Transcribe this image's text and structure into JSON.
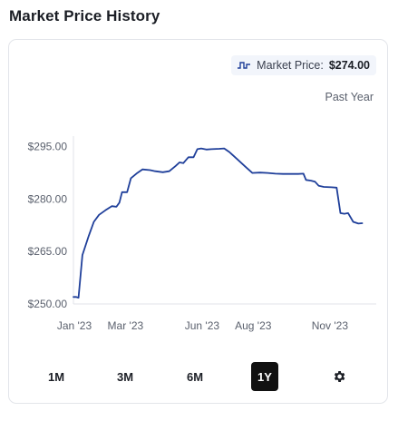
{
  "page": {
    "title": "Market Price History"
  },
  "badge": {
    "label": "Market Price:",
    "value": "$274.00"
  },
  "period": "Past Year",
  "ranges": [
    {
      "label": "1M",
      "active": false
    },
    {
      "label": "3M",
      "active": false
    },
    {
      "label": "6M",
      "active": false
    },
    {
      "label": "1Y",
      "active": true
    }
  ],
  "settings_icon": "gear-icon",
  "colors": {
    "line": "#1f3f9a",
    "active_range": "#111111"
  },
  "chart_data": {
    "type": "line",
    "x_unit": "month",
    "xticks": [
      {
        "label": "Jan '23",
        "x": 0
      },
      {
        "label": "Mar '23",
        "x": 2
      },
      {
        "label": "Jun '23",
        "x": 5
      },
      {
        "label": "Aug '23",
        "x": 7
      },
      {
        "label": "Nov '23",
        "x": 10
      }
    ],
    "yticks": [
      {
        "label": "$295.00",
        "y": 295
      },
      {
        "label": "$280.00",
        "y": 280
      },
      {
        "label": "$265.00",
        "y": 265
      },
      {
        "label": "$250.00",
        "y": 250
      }
    ],
    "xlim": [
      0,
      11.85
    ],
    "ylim": [
      250,
      297
    ],
    "grid": false,
    "series": [
      {
        "values": [
          [
            0,
            252.0
          ],
          [
            0.1,
            252.0
          ],
          [
            0.2,
            251.8
          ],
          [
            0.35,
            264.0
          ],
          [
            0.6,
            269.5
          ],
          [
            0.8,
            273.5
          ],
          [
            1.0,
            275.5
          ],
          [
            1.25,
            276.8
          ],
          [
            1.5,
            278.0
          ],
          [
            1.68,
            277.8
          ],
          [
            1.8,
            279.0
          ],
          [
            1.9,
            282.0
          ],
          [
            2.1,
            282.0
          ],
          [
            2.25,
            286.0
          ],
          [
            2.5,
            287.5
          ],
          [
            2.7,
            288.5
          ],
          [
            3.0,
            288.3
          ],
          [
            3.2,
            288.0
          ],
          [
            3.5,
            287.7
          ],
          [
            3.75,
            288.0
          ],
          [
            4.0,
            289.5
          ],
          [
            4.15,
            290.5
          ],
          [
            4.3,
            290.3
          ],
          [
            4.5,
            292.0
          ],
          [
            4.7,
            292.0
          ],
          [
            4.85,
            294.3
          ],
          [
            5.0,
            294.5
          ],
          [
            5.2,
            294.2
          ],
          [
            5.4,
            294.3
          ],
          [
            5.7,
            294.4
          ],
          [
            5.9,
            294.5
          ],
          [
            6.1,
            293.5
          ],
          [
            6.4,
            291.5
          ],
          [
            6.7,
            289.5
          ],
          [
            7.0,
            287.5
          ],
          [
            7.3,
            287.6
          ],
          [
            7.6,
            287.5
          ],
          [
            7.9,
            287.3
          ],
          [
            8.2,
            287.2
          ],
          [
            8.5,
            287.2
          ],
          [
            8.8,
            287.2
          ],
          [
            9.0,
            287.3
          ],
          [
            9.1,
            285.5
          ],
          [
            9.3,
            285.3
          ],
          [
            9.45,
            285.0
          ],
          [
            9.6,
            283.8
          ],
          [
            9.8,
            283.5
          ],
          [
            10.1,
            283.4
          ],
          [
            10.3,
            283.3
          ],
          [
            10.45,
            276.0
          ],
          [
            10.6,
            275.8
          ],
          [
            10.75,
            276.0
          ],
          [
            10.95,
            273.5
          ],
          [
            11.15,
            273.0
          ],
          [
            11.3,
            273.1
          ]
        ]
      }
    ]
  }
}
